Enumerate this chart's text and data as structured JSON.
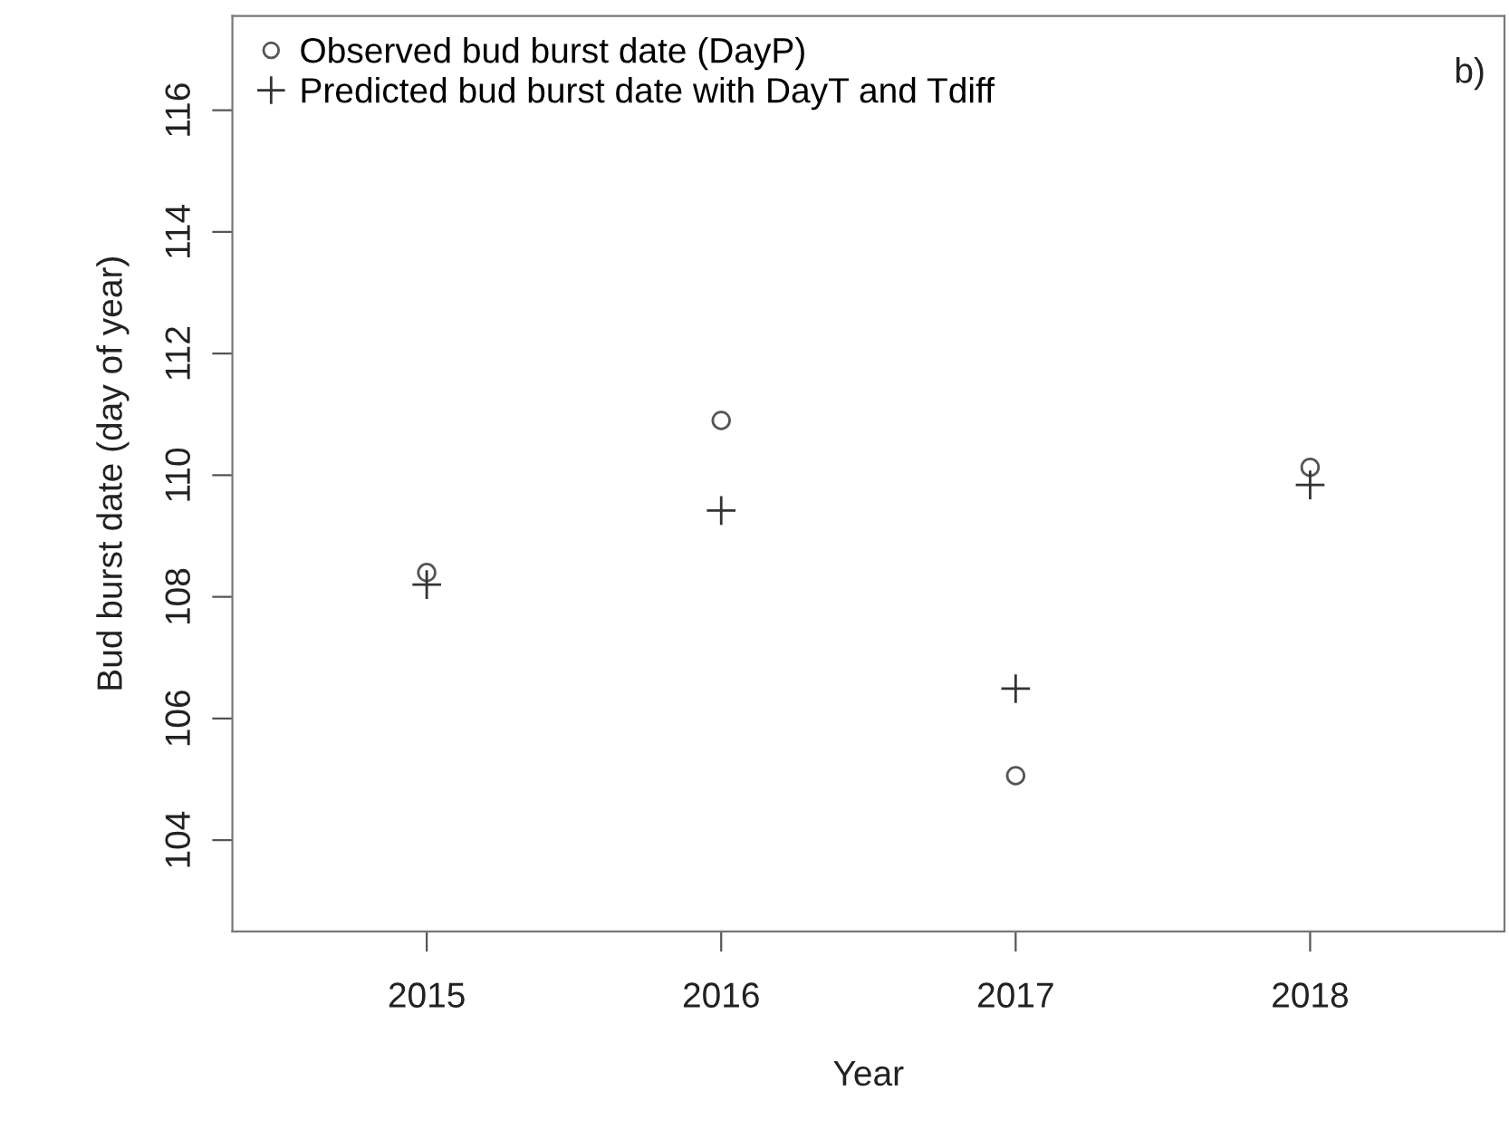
{
  "chart_data": {
    "type": "scatter",
    "xlabel": "Year",
    "ylabel": "Bud burst date (day of year)",
    "x": [
      2015,
      2016,
      2017,
      2018
    ],
    "series": [
      {
        "name": "Observed bud burst date (DayP)",
        "color": "#555555",
        "marker": "circle",
        "values": [
          108.4,
          110.9,
          105.06,
          110.13
        ]
      },
      {
        "name": "Predicted bud burst date with DayT and Tdiff",
        "color": "#333333",
        "marker": "cross",
        "values": [
          108.2,
          109.42,
          106.49,
          109.84
        ]
      }
    ],
    "xlim": [
      2014.34,
      2018.66
    ],
    "ylim": [
      102.5,
      117.55
    ],
    "xticks": [
      2015,
      2016,
      2017,
      2018
    ],
    "yticks": [
      104,
      106,
      108,
      110,
      112,
      114,
      116
    ],
    "annotations": [
      "b)"
    ],
    "legend": "top left",
    "grid": false
  }
}
